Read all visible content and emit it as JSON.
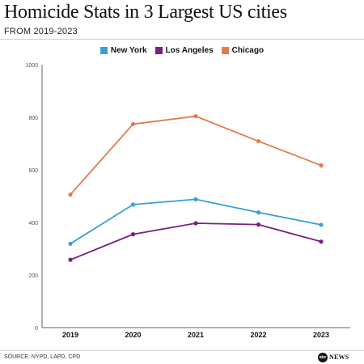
{
  "header": {
    "title": "Homicide Stats in 3 Largest US cities",
    "subtitle": "FROM 2019-2023"
  },
  "colors": {
    "new_york": "#3a9fd8",
    "los_angeles": "#75237c",
    "chicago": "#e07d4c",
    "axis": "#666666",
    "tick_text": "#555555"
  },
  "chart_data": {
    "type": "line",
    "title": "Homicide Stats in 3 Largest US cities",
    "subtitle": "FROM 2019-2023",
    "categories": [
      "2019",
      "2020",
      "2021",
      "2022",
      "2023"
    ],
    "ylim": [
      0,
      1000
    ],
    "yticks": [
      0,
      200,
      400,
      600,
      800,
      1000
    ],
    "ytick_labels": [
      "0",
      "200",
      "400",
      "600",
      "800",
      "1000"
    ],
    "grid": false,
    "legend_position": "top-center",
    "series": [
      {
        "name": "New York",
        "color": "#3a9fd8",
        "values": [
          319,
          468,
          488,
          438,
          391
        ]
      },
      {
        "name": "Los Angeles",
        "color": "#75237c",
        "values": [
          258,
          355,
          397,
          392,
          327
        ]
      },
      {
        "name": "Chicago",
        "color": "#e07d4c",
        "values": [
          506,
          774,
          804,
          709,
          617
        ]
      }
    ]
  },
  "legend": {
    "items": [
      {
        "label": "New York",
        "color": "#3a9fd8"
      },
      {
        "label": "Los Angeles",
        "color": "#75237c"
      },
      {
        "label": "Chicago",
        "color": "#e07d4c"
      }
    ]
  },
  "footer": {
    "source": "SOURCE: NYPD, LAPD, CPD",
    "logo_mark": "abc",
    "logo_text": "NEWS"
  }
}
